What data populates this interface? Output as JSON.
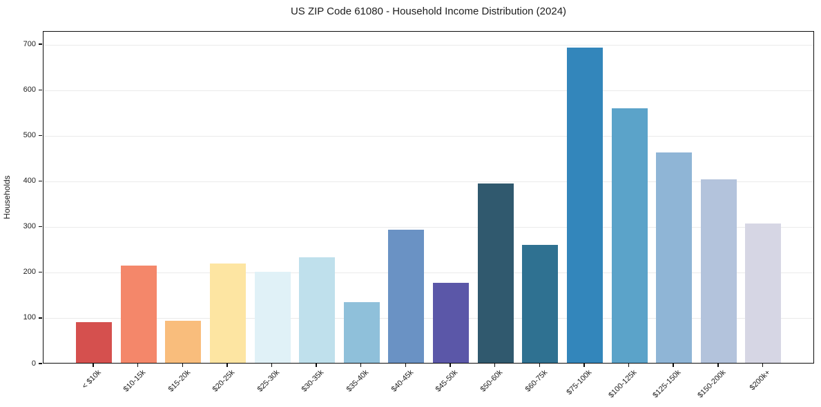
{
  "chart_data": {
    "type": "bar",
    "title": "US ZIP Code 61080 - Household Income Distribution (2024)",
    "xlabel": "",
    "ylabel": "Households",
    "categories": [
      "< $10k",
      "$10-15k",
      "$15-20k",
      "$20-25k",
      "$25-30k",
      "$30-35k",
      "$35-40k",
      "$40-45k",
      "$45-50k",
      "$50-60k",
      "$60-75k",
      "$75-100k",
      "$100-125k",
      "$125-150k",
      "$150-200k",
      "$200k+"
    ],
    "values": [
      90,
      213,
      92,
      218,
      200,
      232,
      133,
      292,
      175,
      393,
      258,
      691,
      558,
      461,
      402,
      306
    ],
    "bar_colors": [
      "#d5504e",
      "#f4876a",
      "#f9bd7c",
      "#fde5a2",
      "#e0f1f7",
      "#bfe0ec",
      "#8fc0da",
      "#6a92c4",
      "#5b57a8",
      "#30596e",
      "#2f7191",
      "#3386bb",
      "#5ba3c9",
      "#8fb5d6",
      "#b3c3dc",
      "#d6d6e4"
    ],
    "yticks": [
      0,
      100,
      200,
      300,
      400,
      500,
      600,
      700
    ],
    "ylim": [
      0,
      729
    ],
    "x_tick_rotation": 45,
    "grid": "horizontal",
    "grid_color": "#eaeaea",
    "spine_color": "#0a0a0a",
    "background_color": "#ffffff",
    "legend": "none"
  }
}
